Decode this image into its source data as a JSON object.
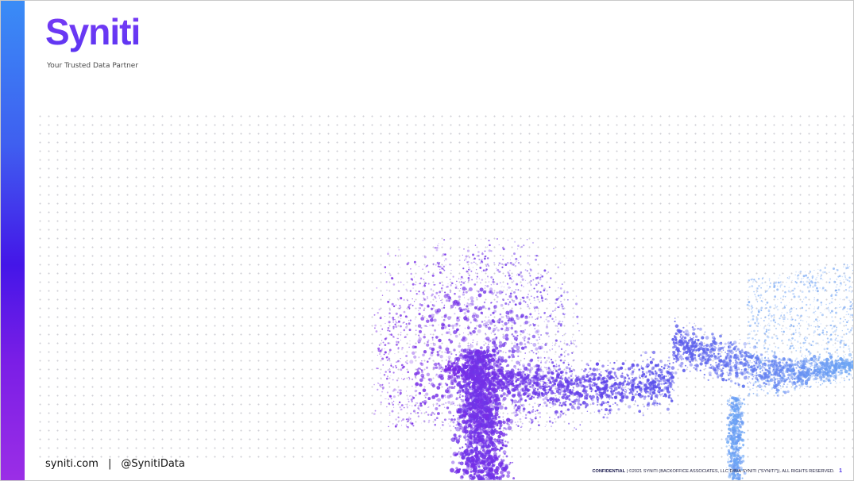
{
  "brand": {
    "logo_text": "Syniti",
    "tagline": "Your Trusted Data Partner",
    "colors": {
      "accent_blue": "#3a8cf6",
      "accent_purple": "#7a1ee6",
      "logo_purple": "#6a35f3"
    }
  },
  "footer": {
    "website": "syniti.com",
    "separator": "|",
    "social_handle": "@SynitiData",
    "confidential_label": "CONFIDENTIAL",
    "legal_text": "| ©2021 SYNITI (BACKOFFICE ASSOCIATES, LLC D/B/A SYNITI (\"SYNITI\")). ALL RIGHTS RESERVED.",
    "page_number": "1"
  }
}
